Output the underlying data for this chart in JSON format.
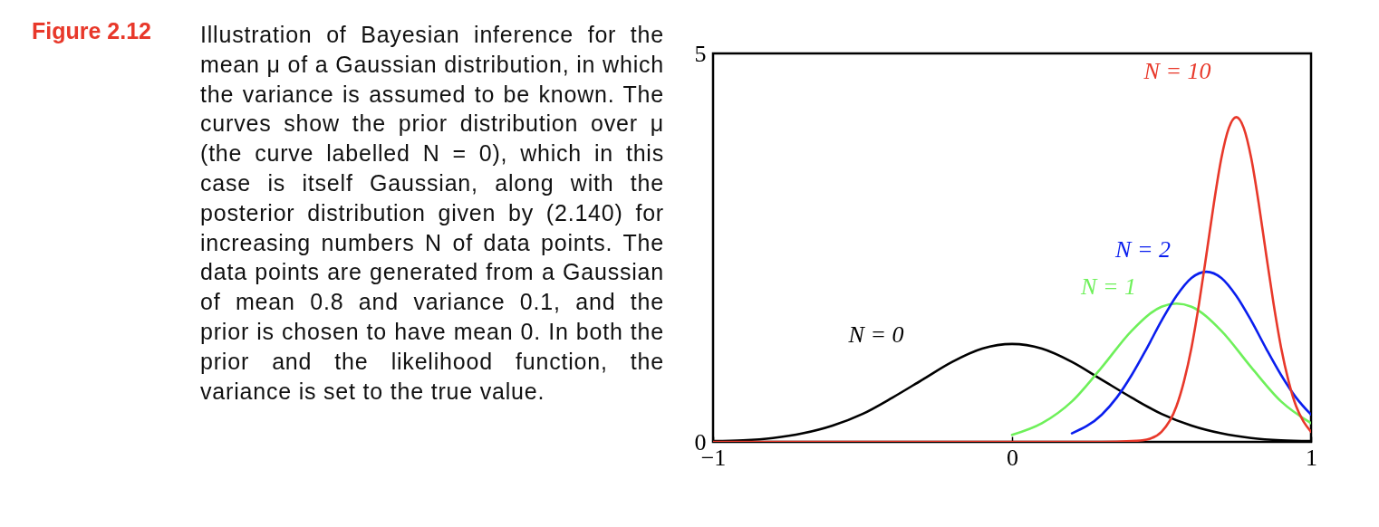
{
  "chart_data": {
    "type": "line",
    "title": "Figure 2.12",
    "annotations": [
      "Illustration of Bayesian inference for the mean μ of a Gaussian distribution, in which the variance is assumed to be known.  The curves show the prior distribution over μ (the curve labelled N = 0), which in this case is itself Gaussian, along with the posterior distribution given by (2.140) for increasing numbers N of data points.  The data points are generated from a Gaussian of mean 0.8 and variance 0.1, and the prior is chosen to have mean 0.  In both the prior and the likelihood function, the variance is set to the true value."
    ],
    "xlim": [
      -1,
      1
    ],
    "xticks": [
      -1,
      0,
      1
    ],
    "ylim": [
      0,
      5
    ],
    "yticks": [
      0,
      5
    ],
    "grid": false,
    "marker": "none",
    "line_style": "solid",
    "series": [
      {
        "name": "N = 0",
        "color": "#000000",
        "x": [
          -1,
          -0.9,
          -0.8,
          -0.7,
          -0.6,
          -0.5,
          -0.4,
          -0.3,
          -0.2,
          -0.1,
          0,
          0.1,
          0.2,
          0.3,
          0.4,
          0.5,
          0.6,
          0.7,
          0.8,
          0.9,
          1
        ],
        "values": [
          0.01,
          0.02,
          0.05,
          0.11,
          0.21,
          0.36,
          0.57,
          0.8,
          1.03,
          1.2,
          1.26,
          1.2,
          1.03,
          0.8,
          0.57,
          0.36,
          0.21,
          0.11,
          0.05,
          0.02,
          0.01
        ]
      },
      {
        "name": "N = 1",
        "color": "#6ef05a",
        "x": [
          0,
          0.1,
          0.2,
          0.3,
          0.4,
          0.5,
          0.55,
          0.6,
          0.7,
          0.8,
          0.9,
          1
        ],
        "values": [
          0.09,
          0.24,
          0.52,
          0.96,
          1.43,
          1.74,
          1.78,
          1.74,
          1.43,
          0.96,
          0.52,
          0.24
        ]
      },
      {
        "name": "N = 2",
        "color": "#0a1eee",
        "x": [
          0.2,
          0.3,
          0.35,
          0.4,
          0.45,
          0.5,
          0.55,
          0.6,
          0.65,
          0.7,
          0.75,
          0.8,
          0.85,
          0.9,
          0.95,
          1
        ],
        "values": [
          0.11,
          0.35,
          0.57,
          0.86,
          1.2,
          1.56,
          1.88,
          2.11,
          2.19,
          2.11,
          1.88,
          1.56,
          1.2,
          0.86,
          0.57,
          0.35
        ]
      },
      {
        "name": "N = 10",
        "color": "#e8382a",
        "x": [
          -1,
          0.3,
          0.4,
          0.45,
          0.5,
          0.55,
          0.575,
          0.6,
          0.625,
          0.65,
          0.675,
          0.7,
          0.725,
          0.75,
          0.775,
          0.8,
          0.825,
          0.85,
          0.875,
          0.9,
          0.925,
          0.95,
          0.975,
          1
        ],
        "values": [
          0,
          0,
          0.01,
          0.03,
          0.13,
          0.46,
          0.78,
          1.21,
          1.77,
          2.41,
          3.07,
          3.65,
          4.04,
          4.18,
          4.04,
          3.65,
          3.07,
          2.41,
          1.77,
          1.21,
          0.78,
          0.46,
          0.26,
          0.13
        ]
      }
    ]
  }
}
